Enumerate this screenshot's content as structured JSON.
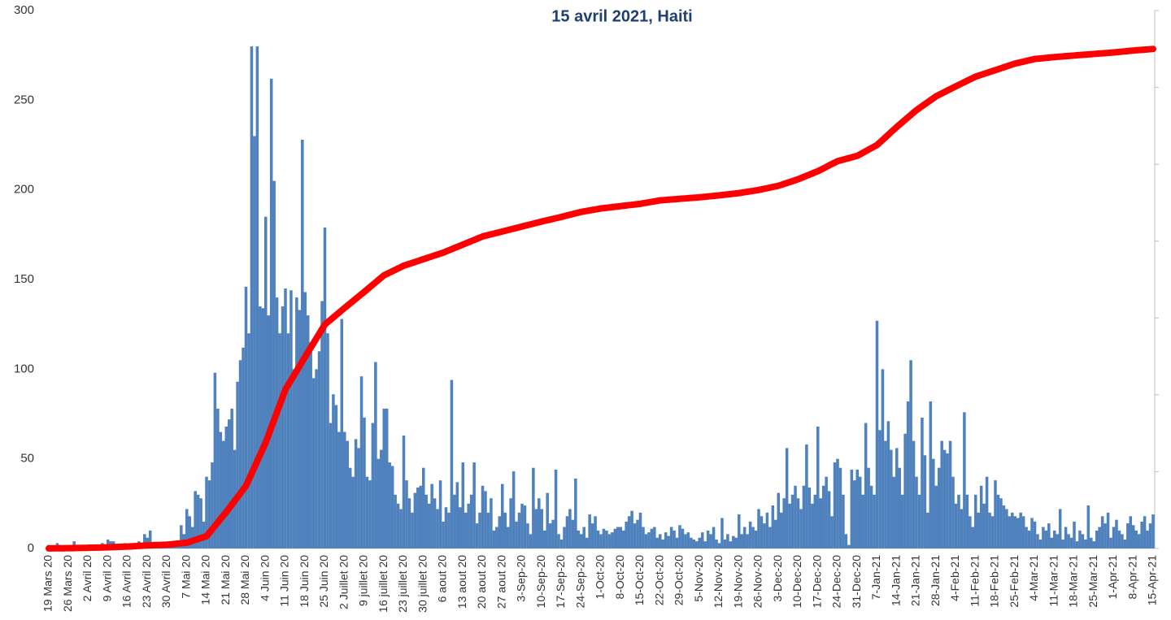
{
  "chart_data": {
    "type": "bar-line",
    "title": "15 avril 2021, Haiti",
    "categories": [
      "19 Mars 20",
      null,
      null,
      null,
      null,
      null,
      null,
      "26 Mars 20",
      null,
      null,
      null,
      null,
      null,
      null,
      "2 Avril 20",
      null,
      null,
      null,
      null,
      null,
      null,
      "9 Avril 20",
      null,
      null,
      null,
      null,
      null,
      null,
      "16 Avril 20",
      null,
      null,
      null,
      null,
      null,
      null,
      "23 Avril 20",
      null,
      null,
      null,
      null,
      null,
      null,
      "30 Avril 20",
      null,
      null,
      null,
      null,
      null,
      null,
      "7 Mai 20",
      null,
      null,
      null,
      null,
      null,
      null,
      "14 Mai 20",
      null,
      null,
      null,
      null,
      null,
      null,
      "21 Mai 20",
      null,
      null,
      null,
      null,
      null,
      null,
      "28 Mai 20",
      null,
      null,
      null,
      null,
      null,
      null,
      "4 Juin 20",
      null,
      null,
      null,
      null,
      null,
      null,
      "11 Juin 20",
      null,
      null,
      null,
      null,
      null,
      null,
      "18 Juin 20",
      null,
      null,
      null,
      null,
      null,
      null,
      "25 Juin 20",
      null,
      null,
      null,
      null,
      null,
      null,
      "2 Juillet 20",
      null,
      null,
      null,
      null,
      null,
      null,
      "9 juillet 20",
      null,
      null,
      null,
      null,
      null,
      null,
      "16 juillet 20",
      null,
      null,
      null,
      null,
      null,
      null,
      "23 juillet 20",
      null,
      null,
      null,
      null,
      null,
      null,
      "30 juillet 20",
      null,
      null,
      null,
      null,
      null,
      null,
      "6 aout 20",
      null,
      null,
      null,
      null,
      null,
      null,
      "13 aout 20",
      null,
      null,
      null,
      null,
      null,
      null,
      "20 aout 20",
      null,
      null,
      null,
      null,
      null,
      null,
      "27 aout 20",
      null,
      null,
      null,
      null,
      null,
      null,
      "3-Sep-20",
      null,
      null,
      null,
      null,
      null,
      null,
      "10-Sep-20",
      null,
      null,
      null,
      null,
      null,
      null,
      "17-Sep-20",
      null,
      null,
      null,
      null,
      null,
      null,
      "24-Sep-20",
      null,
      null,
      null,
      null,
      null,
      null,
      "1-Oct-20",
      null,
      null,
      null,
      null,
      null,
      null,
      "8-Oct-20",
      null,
      null,
      null,
      null,
      null,
      null,
      "15-Oct-20",
      null,
      null,
      null,
      null,
      null,
      null,
      "22-Oct-20",
      null,
      null,
      null,
      null,
      null,
      null,
      "29-Oct-20",
      null,
      null,
      null,
      null,
      null,
      null,
      "5-Nov-20",
      null,
      null,
      null,
      null,
      null,
      null,
      "12-Nov-20",
      null,
      null,
      null,
      null,
      null,
      null,
      "19-Nov-20",
      null,
      null,
      null,
      null,
      null,
      null,
      "26-Nov-20",
      null,
      null,
      null,
      null,
      null,
      null,
      "3-Dec-20",
      null,
      null,
      null,
      null,
      null,
      null,
      "10-Dec-20",
      null,
      null,
      null,
      null,
      null,
      null,
      "17-Dec-20",
      null,
      null,
      null,
      null,
      null,
      null,
      "24-Dec-20",
      null,
      null,
      null,
      null,
      null,
      null,
      "31-Dec-20",
      null,
      null,
      null,
      null,
      null,
      null,
      "7-Jan-21",
      null,
      null,
      null,
      null,
      null,
      null,
      "14-Jan-21",
      null,
      null,
      null,
      null,
      null,
      null,
      "21-Jan-21",
      null,
      null,
      null,
      null,
      null,
      null,
      "28-Jan-21",
      null,
      null,
      null,
      null,
      null,
      null,
      "4-Feb-21",
      null,
      null,
      null,
      null,
      null,
      null,
      "11-Feb-21",
      null,
      null,
      null,
      null,
      null,
      null,
      "18-Feb-21",
      null,
      null,
      null,
      null,
      null,
      null,
      "25-Feb-21",
      null,
      null,
      null,
      null,
      null,
      null,
      "4-Mar-21",
      null,
      null,
      null,
      null,
      null,
      null,
      "11-Mar-21",
      null,
      null,
      null,
      null,
      null,
      null,
      "18-Mar-21",
      null,
      null,
      null,
      null,
      null,
      null,
      "25-Mar-21",
      null,
      null,
      null,
      null,
      null,
      null,
      "1-Apr-21",
      null,
      null,
      null,
      null,
      null,
      null,
      "8-Apr-21",
      null,
      null,
      null,
      null,
      null,
      null,
      "15-Apr-21"
    ],
    "series": [
      {
        "type": "bar",
        "color": "#4f81bd",
        "values": [
          2,
          0,
          1,
          3,
          2,
          1,
          0,
          1,
          2,
          4,
          1,
          0,
          2,
          1,
          1,
          2,
          1,
          0,
          1,
          3,
          2,
          5,
          4,
          4,
          2,
          1,
          2,
          3,
          2,
          3,
          1,
          2,
          4,
          2,
          8,
          6,
          10,
          3,
          2,
          1,
          3,
          2,
          2,
          3,
          4,
          2,
          3,
          13,
          8,
          22,
          18,
          12,
          32,
          30,
          28,
          15,
          40,
          38,
          48,
          98,
          78,
          65,
          60,
          68,
          72,
          78,
          55,
          93,
          105,
          112,
          146,
          120,
          280,
          230,
          280,
          135,
          134,
          185,
          130,
          262,
          205,
          140,
          120,
          135,
          145,
          120,
          144,
          100,
          140,
          133,
          228,
          143,
          130,
          115,
          95,
          100,
          110,
          138,
          179,
          120,
          70,
          86,
          80,
          65,
          128,
          65,
          60,
          45,
          40,
          61,
          56,
          96,
          73,
          40,
          38,
          70,
          104,
          50,
          55,
          78,
          78,
          48,
          46,
          30,
          25,
          22,
          63,
          38,
          28,
          20,
          31,
          34,
          35,
          45,
          30,
          25,
          36,
          28,
          22,
          38,
          15,
          23,
          20,
          94,
          30,
          37,
          23,
          48,
          20,
          25,
          30,
          48,
          14,
          20,
          35,
          32,
          20,
          28,
          10,
          12,
          18,
          36,
          20,
          12,
          28,
          43,
          15,
          20,
          25,
          24,
          14,
          8,
          45,
          22,
          28,
          22,
          10,
          31,
          14,
          16,
          44,
          8,
          5,
          12,
          18,
          22,
          16,
          39,
          10,
          8,
          12,
          6,
          19,
          14,
          18,
          10,
          8,
          11,
          10,
          8,
          9,
          11,
          12,
          12,
          10,
          15,
          18,
          21,
          14,
          16,
          20,
          12,
          8,
          9,
          11,
          12,
          6,
          8,
          5,
          9,
          7,
          12,
          10,
          6,
          13,
          11,
          8,
          9,
          6,
          5,
          4,
          6,
          9,
          4,
          10,
          8,
          12,
          5,
          3,
          17,
          5,
          8,
          4,
          7,
          6,
          19,
          8,
          12,
          8,
          15,
          12,
          10,
          22,
          18,
          14,
          20,
          12,
          24,
          16,
          31,
          20,
          28,
          56,
          25,
          30,
          35,
          28,
          22,
          35,
          58,
          34,
          25,
          30,
          68,
          28,
          35,
          40,
          32,
          18,
          48,
          50,
          45,
          30,
          8,
          2,
          44,
          38,
          44,
          40,
          30,
          70,
          45,
          35,
          30,
          127,
          66,
          100,
          60,
          71,
          55,
          40,
          56,
          45,
          30,
          64,
          82,
          105,
          60,
          40,
          30,
          73,
          52,
          20,
          82,
          50,
          35,
          45,
          60,
          55,
          53,
          60,
          40,
          25,
          30,
          22,
          76,
          30,
          18,
          12,
          30,
          20,
          35,
          25,
          40,
          20,
          18,
          38,
          30,
          28,
          24,
          22,
          18,
          20,
          18,
          17,
          20,
          18,
          12,
          10,
          17,
          15,
          8,
          5,
          12,
          10,
          14,
          6,
          10,
          8,
          22,
          5,
          12,
          8,
          6,
          15,
          4,
          10,
          8,
          5,
          24,
          6,
          4,
          10,
          12,
          18,
          14,
          20,
          6,
          12,
          16,
          10,
          8,
          5,
          14,
          18,
          13,
          10,
          8,
          15,
          18,
          10,
          14,
          19
        ]
      },
      {
        "type": "line",
        "axis": "y2",
        "color": "#ff0000",
        "values": [
          2,
          3,
          4,
          5,
          5,
          6,
          7,
          8,
          9,
          11,
          12,
          14,
          15,
          17,
          18,
          20,
          21,
          23,
          25,
          27,
          28,
          30,
          33,
          36,
          39,
          41,
          44,
          47,
          50,
          54,
          59,
          63,
          67,
          71,
          76,
          80,
          83,
          86,
          89,
          91,
          94,
          97,
          100,
          107,
          114,
          121,
          129,
          136,
          143,
          150,
          174,
          199,
          223,
          247,
          271,
          296,
          320,
          410,
          500,
          590,
          680,
          770,
          860,
          950,
          1047,
          1144,
          1241,
          1339,
          1436,
          1533,
          1630,
          1791,
          1953,
          2114,
          2276,
          2437,
          2599,
          2760,
          2957,
          3154,
          3351,
          3549,
          3746,
          3943,
          4140,
          4261,
          4383,
          4504,
          4626,
          4747,
          4869,
          4990,
          5110,
          5230,
          5350,
          5470,
          5590,
          5710,
          5830,
          5891,
          5953,
          6014,
          6076,
          6137,
          6199,
          6260,
          6320,
          6380,
          6440,
          6500,
          6560,
          6620,
          6680,
          6741,
          6803,
          6864,
          6926,
          6987,
          7049,
          7110,
          7146,
          7181,
          7217,
          7253,
          7289,
          7324,
          7360,
          7384,
          7409,
          7433,
          7457,
          7481,
          7506,
          7530,
          7554,
          7579,
          7603,
          7627,
          7651,
          7676,
          7700,
          7730,
          7760,
          7790,
          7820,
          7850,
          7880,
          7910,
          7940,
          7970,
          8000,
          8030,
          8060,
          8090,
          8120,
          8139,
          8157,
          8176,
          8194,
          8213,
          8231,
          8250,
          8269,
          8287,
          8306,
          8324,
          8343,
          8361,
          8380,
          8399,
          8417,
          8436,
          8454,
          8473,
          8491,
          8510,
          8527,
          8544,
          8561,
          8579,
          8596,
          8613,
          8630,
          8649,
          8667,
          8686,
          8704,
          8723,
          8741,
          8760,
          8773,
          8786,
          8799,
          8811,
          8824,
          8837,
          8850,
          8859,
          8867,
          8876,
          8884,
          8893,
          8901,
          8910,
          8919,
          8927,
          8936,
          8944,
          8953,
          8961,
          8970,
          8983,
          8996,
          9009,
          9021,
          9034,
          9047,
          9060,
          9066,
          9071,
          9077,
          9083,
          9089,
          9094,
          9100,
          9106,
          9111,
          9117,
          9123,
          9129,
          9134,
          9140,
          9147,
          9154,
          9161,
          9169,
          9176,
          9183,
          9190,
          9199,
          9207,
          9216,
          9224,
          9233,
          9241,
          9250,
          9261,
          9273,
          9284,
          9296,
          9307,
          9319,
          9330,
          9346,
          9361,
          9377,
          9393,
          9409,
          9424,
          9440,
          9464,
          9489,
          9513,
          9537,
          9561,
          9586,
          9610,
          9640,
          9670,
          9700,
          9730,
          9760,
          9790,
          9820,
          9857,
          9894,
          9931,
          9969,
          10006,
          10043,
          10080,
          10100,
          10120,
          10140,
          10160,
          10180,
          10200,
          10220,
          10260,
          10300,
          10340,
          10380,
          10420,
          10460,
          10500,
          10567,
          10634,
          10701,
          10769,
          10836,
          10903,
          10970,
          11033,
          11096,
          11159,
          11221,
          11284,
          11347,
          11410,
          11461,
          11513,
          11564,
          11616,
          11667,
          11719,
          11770,
          11807,
          11844,
          11881,
          11919,
          11956,
          11993,
          12030,
          12066,
          12101,
          12137,
          12173,
          12209,
          12244,
          12280,
          12304,
          12329,
          12353,
          12377,
          12401,
          12426,
          12450,
          12474,
          12499,
          12523,
          12547,
          12571,
          12596,
          12620,
          12637,
          12654,
          12671,
          12689,
          12706,
          12723,
          12740,
          12747,
          12754,
          12761,
          12769,
          12776,
          12783,
          12790,
          12796,
          12801,
          12807,
          12813,
          12819,
          12824,
          12830,
          12836,
          12841,
          12847,
          12853,
          12859,
          12864,
          12870,
          12876,
          12881,
          12887,
          12893,
          12899,
          12904,
          12910,
          12917,
          12924,
          12931,
          12939,
          12946,
          12953,
          12960,
          12966,
          12971,
          12977,
          12983,
          12989,
          12994,
          13000
        ]
      }
    ],
    "ylim": [
      0,
      300
    ],
    "yticks": [
      0,
      50,
      100,
      150,
      200,
      250,
      300
    ],
    "y2lim": [
      0,
      14000
    ],
    "y2ticks": [
      0,
      2000,
      4000,
      6000,
      8000,
      10000,
      12000,
      14000
    ]
  }
}
